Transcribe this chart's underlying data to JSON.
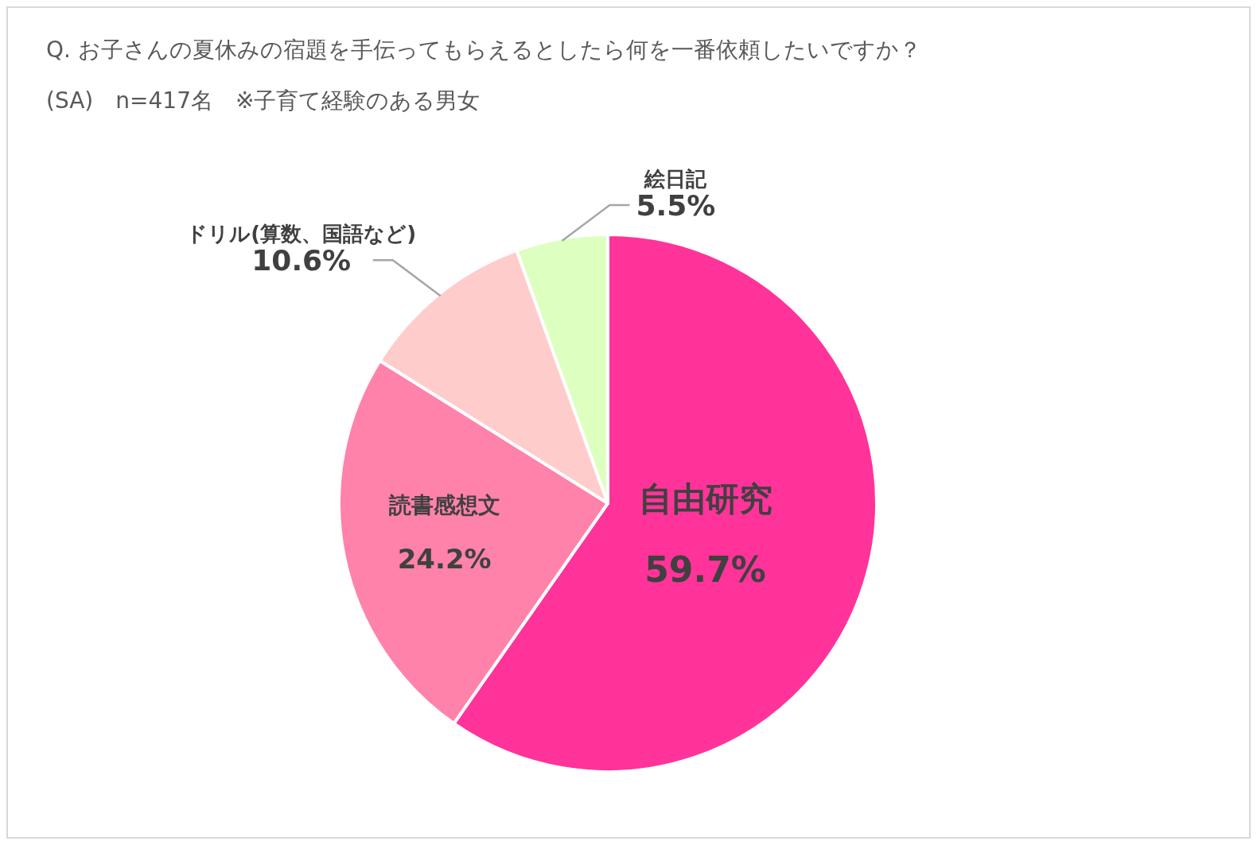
{
  "chart_data": {
    "type": "pie",
    "title": "Q. お子さんの夏休みの宿題を手伝ってもらえるとしたら何を一番依頼したいですか？",
    "subtitle": "(SA)　n=417名　※子育て経験のある男女",
    "categories": [
      "自由研究",
      "読書感想文",
      "ドリル(算数、国語など)",
      "絵日記"
    ],
    "values": [
      59.7,
      24.2,
      10.6,
      5.5
    ],
    "colors": [
      "#ff3399",
      "#ff82aa",
      "#ffcccc",
      "#ddffc0"
    ],
    "value_labels": [
      "59.7%",
      "24.2%",
      "10.6%",
      "5.5%"
    ]
  }
}
